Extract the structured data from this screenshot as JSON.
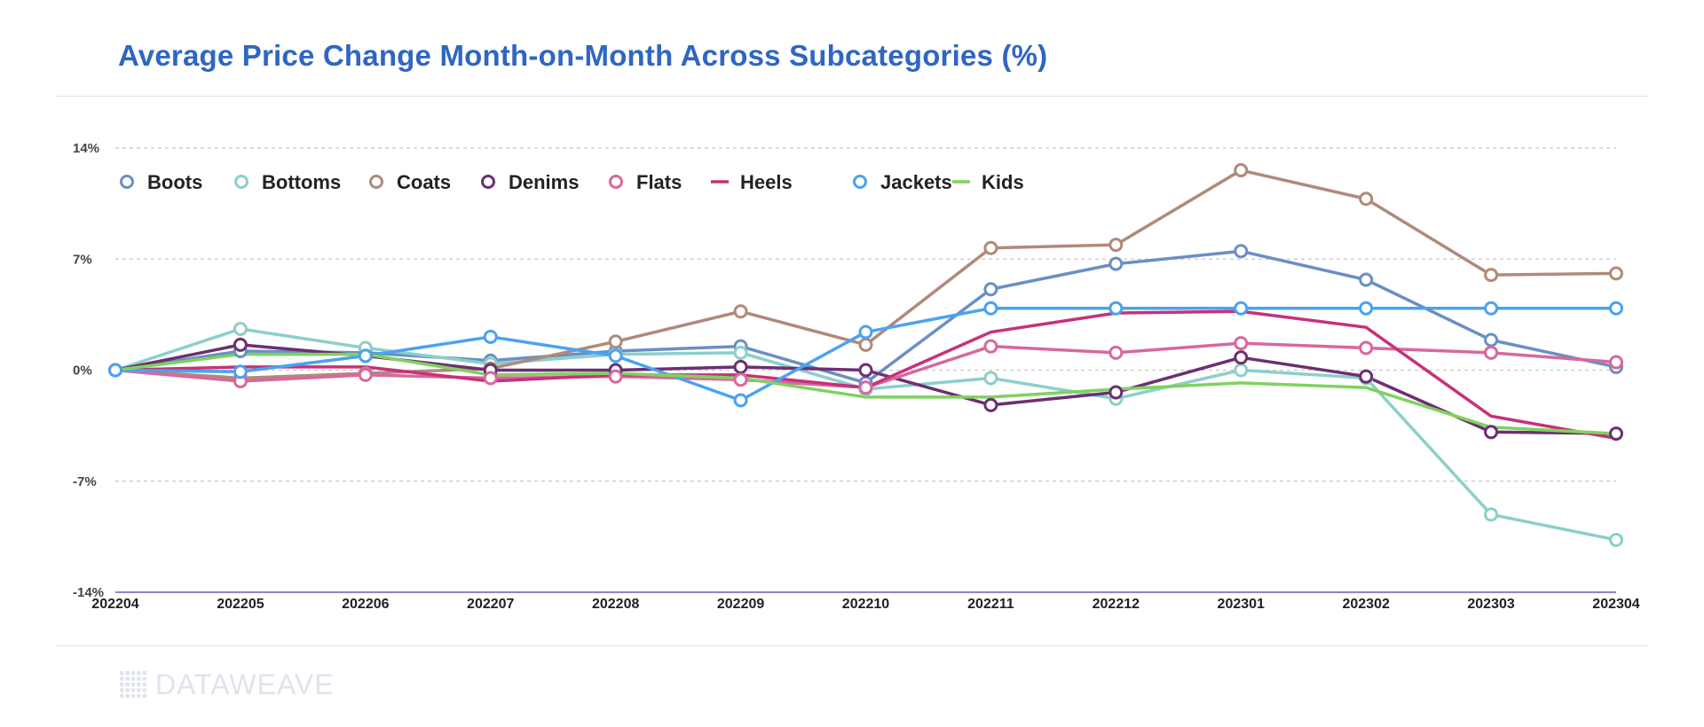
{
  "colors": {
    "title": "#2f66c2",
    "grid": "#c8c8c8",
    "xaxis": "#6b5bb5"
  },
  "logo": {
    "text": "DATAWEAVE",
    "icon": "grid-dots-icon"
  },
  "chart_data": {
    "type": "line",
    "title": "Average Price Change Month-on-Month Across Subcategories (%)",
    "xlabel": "",
    "ylabel": "",
    "x": [
      "202204",
      "202205",
      "202206",
      "202207",
      "202208",
      "202209",
      "202210",
      "202211",
      "202212",
      "202301",
      "202302",
      "202303",
      "202304"
    ],
    "ylim": [
      -14,
      14
    ],
    "yticks": [
      14,
      7,
      0,
      -7,
      -14
    ],
    "ytick_labels": [
      "14%",
      "7%",
      "0%",
      "-7%",
      "-14%"
    ],
    "grid": "horizontal-dashed",
    "legend_position": "top-left",
    "series": [
      {
        "name": "Boots",
        "color": "#6a8fc4",
        "marker": true,
        "values": [
          0,
          1.2,
          1.1,
          0.6,
          1.2,
          1.5,
          -0.8,
          5.1,
          6.7,
          7.5,
          5.7,
          1.9,
          0.2
        ]
      },
      {
        "name": "Bottoms",
        "color": "#8ccfca",
        "marker": true,
        "values": [
          0,
          2.6,
          1.4,
          0.4,
          1.0,
          1.1,
          -1.2,
          -0.5,
          -1.8,
          0.0,
          -0.5,
          -9.1,
          -10.7
        ]
      },
      {
        "name": "Coats",
        "color": "#b08a7a",
        "marker": true,
        "values": [
          0,
          -0.5,
          -0.2,
          0.1,
          1.8,
          3.7,
          1.6,
          7.7,
          7.9,
          12.6,
          10.8,
          6.0,
          6.1
        ]
      },
      {
        "name": "Denims",
        "color": "#6c2f72",
        "marker": true,
        "values": [
          0,
          1.6,
          0.9,
          0.0,
          0.0,
          0.2,
          0.0,
          -2.2,
          -1.4,
          0.8,
          -0.4,
          -3.9,
          -4.0
        ]
      },
      {
        "name": "Flats",
        "color": "#d8689e",
        "marker": true,
        "values": [
          0,
          -0.7,
          -0.3,
          -0.5,
          -0.4,
          -0.6,
          -1.1,
          1.5,
          1.1,
          1.7,
          1.4,
          1.1,
          0.5
        ]
      },
      {
        "name": "Heels",
        "color": "#c7317a",
        "marker": false,
        "values": [
          0,
          0.2,
          0.2,
          -0.7,
          -0.3,
          -0.3,
          -1.1,
          2.4,
          3.6,
          3.7,
          2.7,
          -2.9,
          -4.3
        ]
      },
      {
        "name": "Jackets",
        "color": "#4aa3f0",
        "marker": true,
        "values": [
          0,
          -0.1,
          0.9,
          2.1,
          0.9,
          -1.9,
          2.4,
          3.9,
          3.9,
          3.9,
          3.9,
          3.9,
          3.9
        ]
      },
      {
        "name": "Kids",
        "color": "#7fd25e",
        "marker": false,
        "values": [
          0,
          1.0,
          1.0,
          -0.3,
          -0.2,
          -0.5,
          -1.7,
          -1.7,
          -1.2,
          -0.8,
          -1.1,
          -3.6,
          -4.0
        ]
      }
    ]
  }
}
